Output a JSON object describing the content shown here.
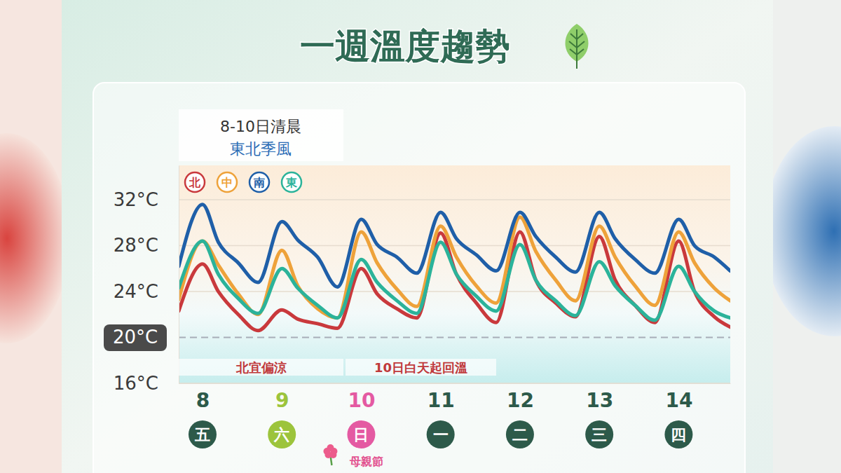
{
  "chart_data": {
    "type": "line",
    "title": "一週溫度趨勢",
    "annotations": [
      "8-10日清晨",
      "東北季風",
      "北宜偏涼",
      "10日白天起回溫"
    ],
    "x": [
      7.7,
      8.0,
      8.2,
      8.45,
      8.7,
      9.0,
      9.2,
      9.45,
      9.7,
      10.0,
      10.2,
      10.45,
      10.7,
      11.0,
      11.2,
      11.45,
      11.7,
      12.0,
      12.2,
      12.45,
      12.7,
      13.0,
      13.2,
      13.45,
      13.7,
      14.0,
      14.2,
      14.45,
      14.65
    ],
    "xlim": [
      7.7,
      14.65
    ],
    "xticks": [
      8,
      9,
      10,
      11,
      12,
      13,
      14
    ],
    "weekdays": [
      "五",
      "六",
      "日",
      "一",
      "二",
      "三",
      "四"
    ],
    "holiday": {
      "day": 10,
      "label": "母親節"
    },
    "ylim": [
      16,
      35
    ],
    "yticks": [
      {
        "value": 16,
        "label": "16°C"
      },
      {
        "value": 20,
        "label": "20°C"
      },
      {
        "value": 24,
        "label": "24°C"
      },
      {
        "value": 28,
        "label": "28°C"
      },
      {
        "value": 32,
        "label": "32°C"
      }
    ],
    "reference_line": 20,
    "grid": true,
    "series": [
      {
        "name": "北",
        "color": "#c9393c",
        "values": [
          22.3,
          26.4,
          24.0,
          22.0,
          20.6,
          22.4,
          21.6,
          21.2,
          20.8,
          26.0,
          23.8,
          22.5,
          21.7,
          29.1,
          25.5,
          23.0,
          21.3,
          29.2,
          25.0,
          23.0,
          21.8,
          28.8,
          25.0,
          22.8,
          21.3,
          28.4,
          24.0,
          21.8,
          20.9
        ]
      },
      {
        "name": "中",
        "color": "#eea23a",
        "values": [
          23.3,
          28.4,
          26.3,
          23.8,
          22.0,
          27.6,
          24.5,
          22.5,
          21.7,
          29.2,
          26.5,
          24.2,
          22.7,
          29.7,
          27.0,
          24.5,
          23.0,
          30.5,
          27.5,
          25.0,
          23.2,
          29.7,
          27.0,
          24.5,
          22.8,
          29.2,
          26.5,
          24.3,
          23.2
        ]
      },
      {
        "name": "南",
        "color": "#1f5fa8",
        "values": [
          26.2,
          31.6,
          28.3,
          26.5,
          24.8,
          30.1,
          28.5,
          27.0,
          24.4,
          30.3,
          28.1,
          27.0,
          25.6,
          30.9,
          28.6,
          27.2,
          25.8,
          30.9,
          28.8,
          27.0,
          25.7,
          30.9,
          28.6,
          26.8,
          25.6,
          30.3,
          28.0,
          27.0,
          25.8
        ]
      },
      {
        "name": "東",
        "color": "#2bb39a",
        "values": [
          24.3,
          28.4,
          25.5,
          23.4,
          22.1,
          26.0,
          24.3,
          22.8,
          21.7,
          26.8,
          24.8,
          23.2,
          22.1,
          28.3,
          25.5,
          23.6,
          22.3,
          28.1,
          25.0,
          23.2,
          21.9,
          26.6,
          24.5,
          22.8,
          21.5,
          26.2,
          24.0,
          22.3,
          21.7
        ]
      }
    ]
  }
}
